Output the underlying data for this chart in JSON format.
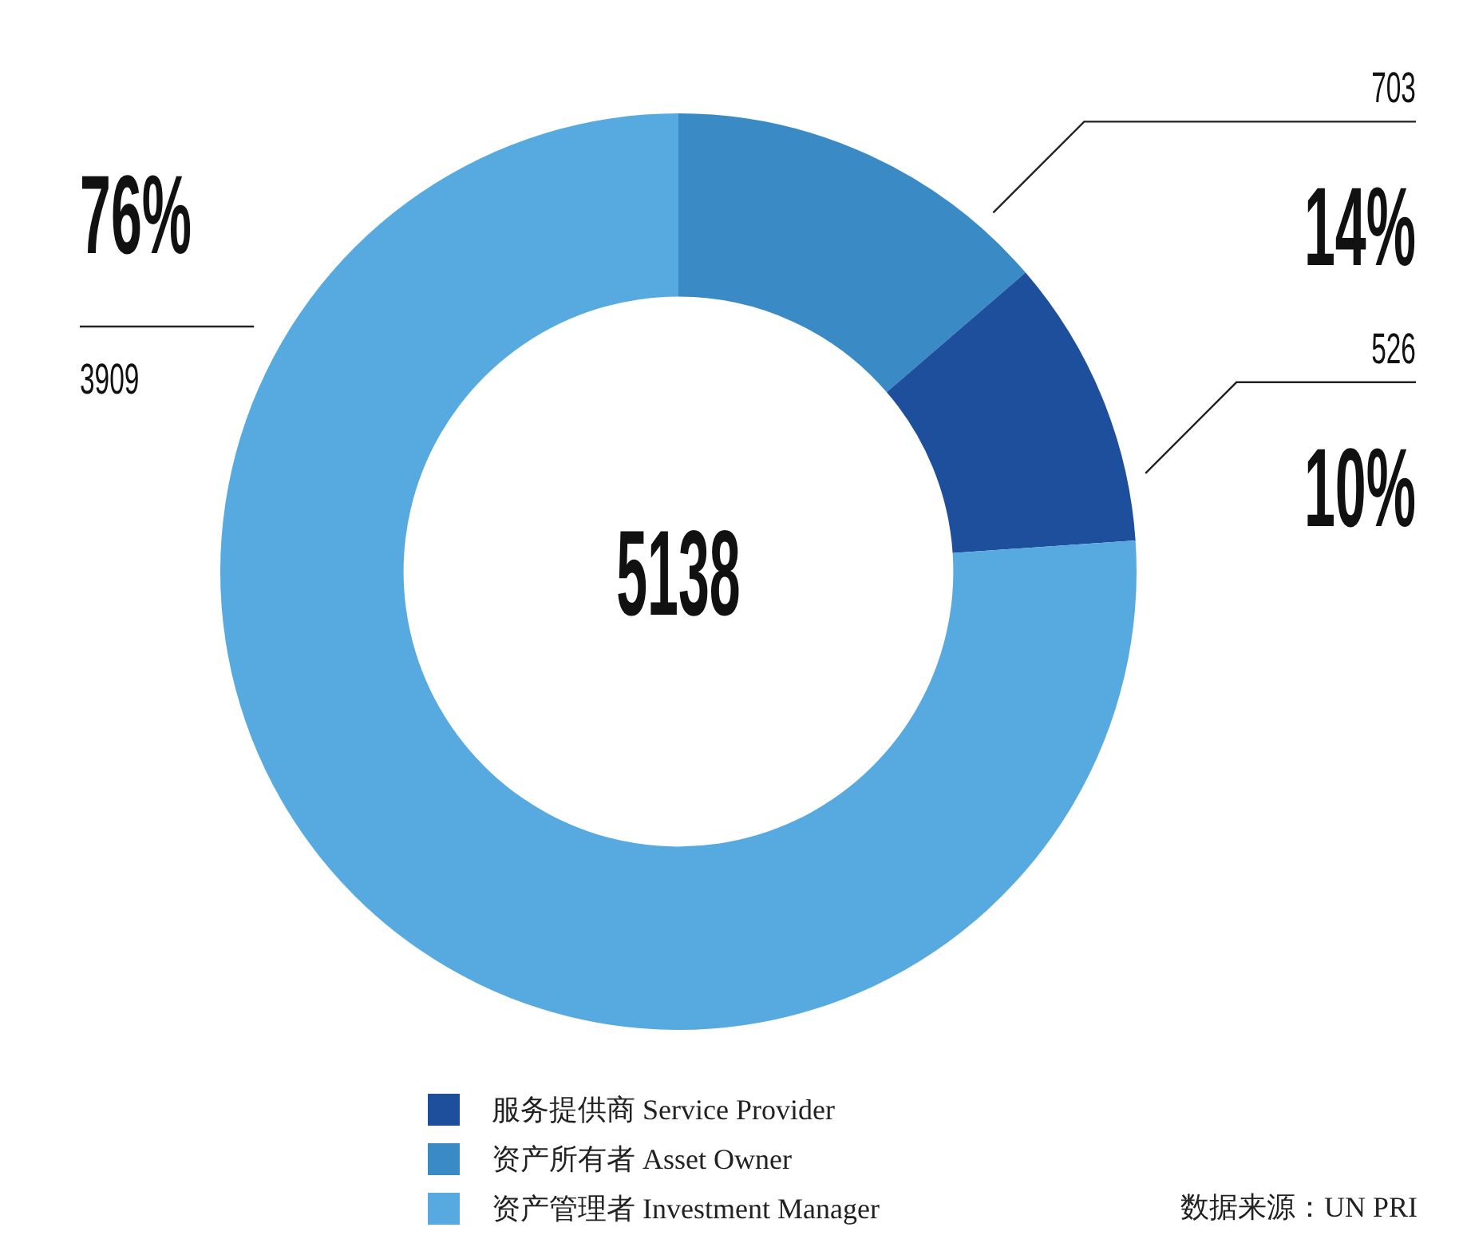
{
  "chart_data": {
    "type": "donut",
    "categories": [
      "资产所有者 Asset Owner",
      "服务提供商 Service Provider",
      "资产管理者 Investment Manager"
    ],
    "values": [
      703,
      526,
      3909
    ],
    "colors": [
      "#3a8bc5",
      "#1e4f9c",
      "#56aadf"
    ],
    "data_labels": true,
    "legend": "bottom",
    "annotations": [
      "5138",
      {
        "text": "14%",
        "x": "资产所有者 Asset Owner"
      },
      {
        "text": "10%",
        "x": "服务提供商 Service Provider"
      },
      {
        "text": "76%",
        "x": "资产管理者 Investment Manager"
      },
      "数据来源：UN PRI"
    ]
  }
}
